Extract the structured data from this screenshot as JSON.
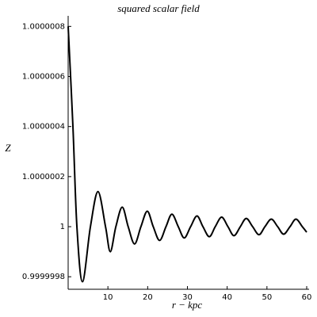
{
  "chart_data": {
    "type": "line",
    "title": "squared scalar field",
    "x_label": "r − kpc",
    "y_label": "Z",
    "xlim": [
      0,
      60
    ],
    "ylim": [
      0.99999975,
      1.00000082
    ],
    "xticks": [
      10,
      20,
      30,
      40,
      50,
      60
    ],
    "yticks": [
      0.9999998,
      1,
      1.0000002,
      1.0000004,
      1.0000006,
      1.0000008
    ],
    "color": "#000000",
    "x": [
      0,
      1.2,
      2.2,
      3.6,
      5.6,
      7.5,
      9.4,
      10.6,
      12,
      13.6,
      15.1,
      16.7,
      18.3,
      19.9,
      21.4,
      23,
      24.6,
      26.1,
      27.7,
      29.2,
      30.8,
      32.4,
      33.9,
      35.5,
      37,
      38.6,
      40.2,
      41.7,
      43.3,
      44.8,
      46.4,
      48,
      49.5,
      51.1,
      52.7,
      54.2,
      55.8,
      57.3,
      58.9,
      60
    ],
    "values": [
      1.0000008,
      1.0000004,
      1.0,
      0.99999978,
      1.0,
      1.00000014,
      1.0,
      0.9999999,
      1.0,
      1.000000078,
      1.0,
      0.999999931,
      1.0,
      1.000000062,
      1.0,
      0.999999945,
      1.0,
      1.00000005,
      1.0,
      0.999999955,
      1.0,
      1.000000043,
      1.0,
      0.99999996,
      1.0,
      1.000000038,
      1.0,
      0.999999964,
      1.0,
      1.000000033,
      1.0,
      0.999999968,
      1.0,
      1.00000003,
      1.0,
      0.99999997,
      1.0,
      1.00000003,
      1.0,
      0.999999978
    ]
  }
}
